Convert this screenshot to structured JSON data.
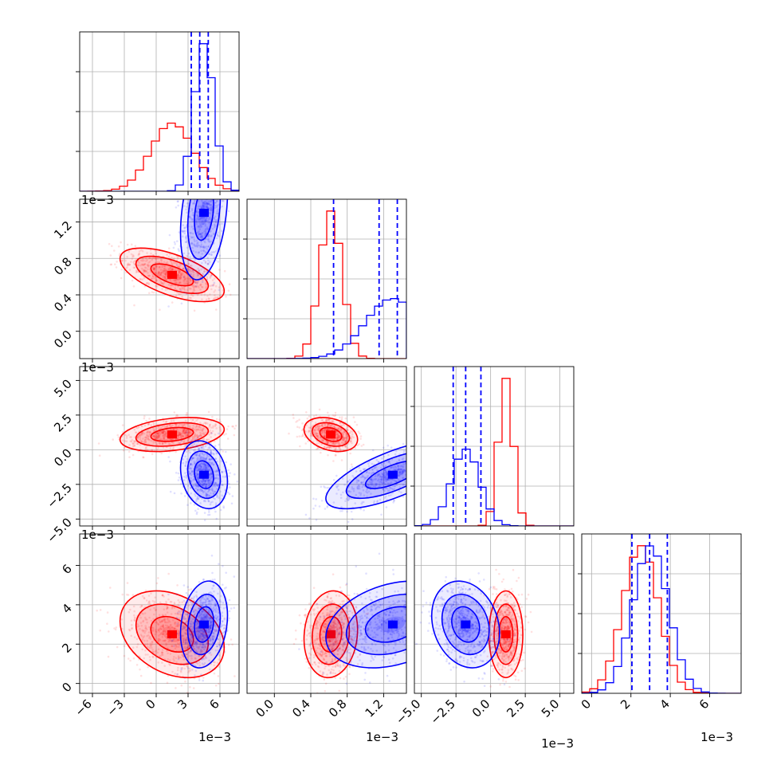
{
  "chart_data": {
    "type": "scatter",
    "title": "",
    "colors": {
      "red": "#ff0000",
      "blue": "#0000ff",
      "grid": "#b0b0b0"
    },
    "parameters": [
      {
        "range": [
          -7.2,
          7.8
        ],
        "ticks": [
          -6,
          -3,
          0,
          3,
          6
        ],
        "tick_labels": [
          "−6",
          "−3",
          "0",
          "3",
          "6"
        ],
        "offset_label": "1e−3"
      },
      {
        "range": [
          -0.3,
          1.45
        ],
        "ticks": [
          0.0,
          0.4,
          0.8,
          1.2
        ],
        "tick_labels": [
          "0.0",
          "0.4",
          "0.8",
          "1.2"
        ],
        "offset_label": "1e−3"
      },
      {
        "range": [
          -5.5,
          6.0
        ],
        "ticks": [
          -5.0,
          -2.5,
          0.0,
          2.5,
          5.0
        ],
        "tick_labels": [
          "−5.0",
          "−2.5",
          "0.0",
          "2.5",
          "5.0"
        ],
        "offset_label": "1e−3"
      },
      {
        "range": [
          -0.5,
          7.6
        ],
        "ticks": [
          0,
          2,
          4,
          6
        ],
        "tick_labels": [
          "0",
          "2",
          "4",
          "6"
        ],
        "offset_label": "1e−3"
      }
    ],
    "series": [
      {
        "color": "red",
        "means": [
          1.5,
          0.62,
          1.1,
          2.5
        ],
        "stds": [
          2.0,
          0.12,
          0.5,
          0.9
        ],
        "correlations": [
          {
            "i": 1,
            "j": 0,
            "rho": -0.6
          },
          {
            "i": 2,
            "j": 0,
            "rho": 0.3
          },
          {
            "i": 2,
            "j": 1,
            "rho": -0.3
          },
          {
            "i": 3,
            "j": 0,
            "rho": -0.3
          },
          {
            "i": 3,
            "j": 1,
            "rho": 0.1
          },
          {
            "i": 3,
            "j": 2,
            "rho": 0.0
          }
        ],
        "quantile_lines": []
      },
      {
        "color": "blue",
        "means": [
          4.5,
          1.3,
          -1.8,
          3.0
        ],
        "stds": [
          0.9,
          0.3,
          1.0,
          0.9
        ],
        "correlations": [
          {
            "i": 1,
            "j": 0,
            "rho": 0.3
          },
          {
            "i": 2,
            "j": 0,
            "rho": -0.2
          },
          {
            "i": 2,
            "j": 1,
            "rho": 0.7
          },
          {
            "i": 3,
            "j": 0,
            "rho": 0.2
          },
          {
            "i": 3,
            "j": 1,
            "rho": 0.3
          },
          {
            "i": 3,
            "j": 2,
            "rho": -0.2
          }
        ],
        "quantile_lines": [
          [
            3.3,
            4.1,
            4.9
          ],
          [
            0.65,
            1.15,
            1.35
          ],
          [
            -2.7,
            -1.8,
            -0.7
          ],
          [
            2.05,
            2.95,
            3.85
          ]
        ]
      }
    ],
    "grid": true,
    "legend": "none"
  }
}
